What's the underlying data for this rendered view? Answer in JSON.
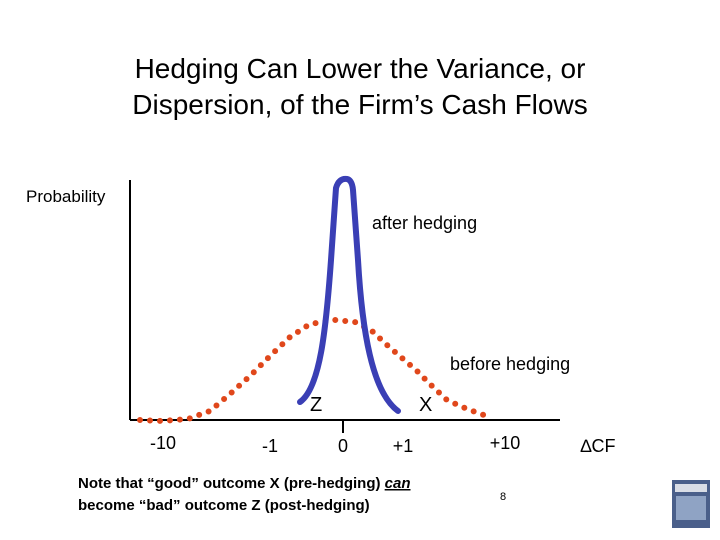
{
  "title": {
    "line1": "Hedging Can Lower the Variance, or",
    "line2": "Dispersion, of the Firm’s Cash Flows"
  },
  "diagram": {
    "y_axis_label": "Probability",
    "after_label": "after hedging",
    "before_label": "before hedging",
    "z_label": "Z",
    "x_label": "X",
    "x_tick_labels": [
      "-10",
      "-1",
      "0",
      "+1",
      "+10"
    ],
    "x_axis_label": "∆CF"
  },
  "note": {
    "line1": "Note that “good” outcome X (pre-hedging)",
    "emphasis": "can",
    "line2": "become “bad” outcome Z (post-hedging)"
  },
  "page_number": "8"
}
